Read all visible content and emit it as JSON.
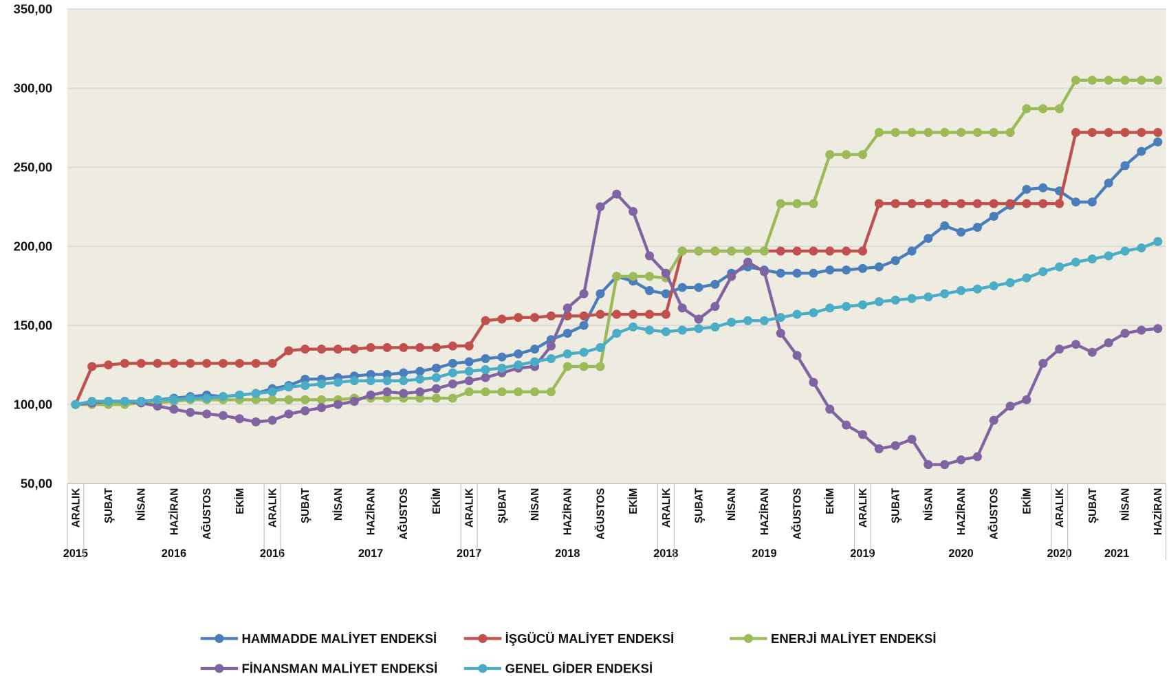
{
  "chart_data": {
    "type": "line",
    "categories": [
      "ARALIK",
      null,
      "ŞUBAT",
      null,
      "NİSAN",
      null,
      "HAZİRAN",
      null,
      "AĞUSTOS",
      null,
      "EKİM",
      null,
      "ARALIK",
      null,
      "ŞUBAT",
      null,
      "NİSAN",
      null,
      "HAZİRAN",
      null,
      "AĞUSTOS",
      null,
      "EKİM",
      null,
      "ARALIK",
      null,
      "ŞUBAT",
      null,
      "NİSAN",
      null,
      "HAZİRAN",
      null,
      "AĞUSTOS",
      null,
      "EKİM",
      null,
      "ARALIK",
      null,
      "ŞUBAT",
      null,
      "NİSAN",
      null,
      "HAZİRAN",
      null,
      "AĞUSTOS",
      null,
      "EKİM",
      null,
      "ARALIK",
      null,
      "ŞUBAT",
      null,
      "NİSAN",
      null,
      "HAZİRAN",
      null,
      "AĞUSTOS",
      null,
      "EKİM",
      null,
      "ARALIK",
      null,
      "ŞUBAT",
      null,
      "NİSAN",
      null,
      "HAZİRAN"
    ],
    "groups": [
      {
        "label": "2015",
        "size": 1
      },
      {
        "label": "2016",
        "size": 11
      },
      {
        "label": "2016",
        "size": 1
      },
      {
        "label": "2017",
        "size": 11
      },
      {
        "label": "2017",
        "size": 1
      },
      {
        "label": "2018",
        "size": 11
      },
      {
        "label": "2018",
        "size": 1
      },
      {
        "label": "2019",
        "size": 11
      },
      {
        "label": "2019",
        "size": 1
      },
      {
        "label": "2020",
        "size": 11
      },
      {
        "label": "2020",
        "size": 1
      },
      {
        "label": "2021",
        "size": 6
      }
    ],
    "ylim": [
      50,
      350
    ],
    "yticks": [
      {
        "value": 50,
        "label": "50,00"
      },
      {
        "value": 100,
        "label": "100,00"
      },
      {
        "value": 150,
        "label": "150,00"
      },
      {
        "value": 200,
        "label": "200,00"
      },
      {
        "value": 250,
        "label": "250,00"
      },
      {
        "value": 300,
        "label": "300,00"
      },
      {
        "value": 350,
        "label": "350,00"
      }
    ],
    "grid": true,
    "legend": "bottom",
    "series": [
      {
        "name": "HAMMADDE MALİYET ENDEKSİ",
        "color": "#4a7ebb",
        "values": [
          100,
          101,
          102,
          102,
          102,
          103,
          104,
          105,
          106,
          105,
          106,
          107,
          110,
          112,
          116,
          116,
          117,
          118,
          119,
          119,
          120,
          121,
          123,
          126,
          127,
          129,
          130,
          132,
          135,
          141,
          145,
          150,
          170,
          181,
          178,
          172,
          170,
          174,
          174,
          176,
          183,
          187,
          185,
          183,
          183,
          183,
          185,
          185,
          186,
          187,
          191,
          197,
          205,
          213,
          209,
          212,
          219,
          226,
          236,
          237,
          235,
          228,
          228,
          240,
          251,
          260,
          266
        ]
      },
      {
        "name": "İŞGÜCÜ MALİYET ENDEKSİ",
        "color": "#c0504d",
        "values": [
          100,
          124,
          125,
          126,
          126,
          126,
          126,
          126,
          126,
          126,
          126,
          126,
          126,
          134,
          135,
          135,
          135,
          135,
          136,
          136,
          136,
          136,
          136,
          137,
          137,
          153,
          154,
          155,
          155,
          156,
          156,
          156,
          157,
          157,
          157,
          157,
          157,
          197,
          197,
          197,
          197,
          197,
          197,
          197,
          197,
          197,
          197,
          197,
          197,
          227,
          227,
          227,
          227,
          227,
          227,
          227,
          227,
          227,
          227,
          227,
          227,
          272,
          272,
          272,
          272,
          272,
          272
        ]
      },
      {
        "name": "ENERJİ MALİYET ENDEKSİ",
        "color": "#9bbb59",
        "values": [
          100,
          100,
          100,
          100,
          101,
          101,
          102,
          103,
          103,
          103,
          103,
          103,
          103,
          103,
          103,
          103,
          103,
          104,
          104,
          104,
          104,
          104,
          104,
          104,
          108,
          108,
          108,
          108,
          108,
          108,
          124,
          124,
          124,
          181,
          181,
          181,
          180,
          197,
          197,
          197,
          197,
          197,
          197,
          227,
          227,
          227,
          258,
          258,
          258,
          272,
          272,
          272,
          272,
          272,
          272,
          272,
          272,
          272,
          287,
          287,
          287,
          305,
          305,
          305,
          305,
          305,
          305
        ]
      },
      {
        "name": "FİNANSMAN MALİYET ENDEKSİ",
        "color": "#8064a2",
        "values": [
          100,
          101,
          102,
          102,
          101,
          99,
          97,
          95,
          94,
          93,
          91,
          89,
          90,
          94,
          96,
          98,
          100,
          102,
          106,
          108,
          107,
          108,
          110,
          113,
          115,
          117,
          120,
          123,
          124,
          137,
          161,
          170,
          225,
          233,
          222,
          194,
          183,
          161,
          154,
          162,
          181,
          190,
          184,
          145,
          131,
          114,
          97,
          87,
          81,
          72,
          74,
          78,
          62,
          62,
          65,
          67,
          90,
          99,
          103,
          126,
          135,
          138,
          133,
          139,
          145,
          147,
          148
        ]
      },
      {
        "name": "GENEL GİDER ENDEKSİ",
        "color": "#4bacc6",
        "values": [
          100,
          102,
          102,
          102,
          102,
          103,
          103,
          104,
          104,
          105,
          106,
          107,
          108,
          111,
          112,
          113,
          114,
          115,
          115,
          115,
          115,
          116,
          117,
          120,
          121,
          122,
          123,
          125,
          127,
          129,
          132,
          133,
          136,
          145,
          149,
          147,
          146,
          147,
          148,
          149,
          152,
          153,
          153,
          155,
          157,
          158,
          161,
          162,
          163,
          165,
          166,
          167,
          168,
          170,
          172,
          173,
          175,
          177,
          180,
          184,
          187,
          190,
          192,
          194,
          197,
          199,
          203
        ]
      }
    ]
  }
}
